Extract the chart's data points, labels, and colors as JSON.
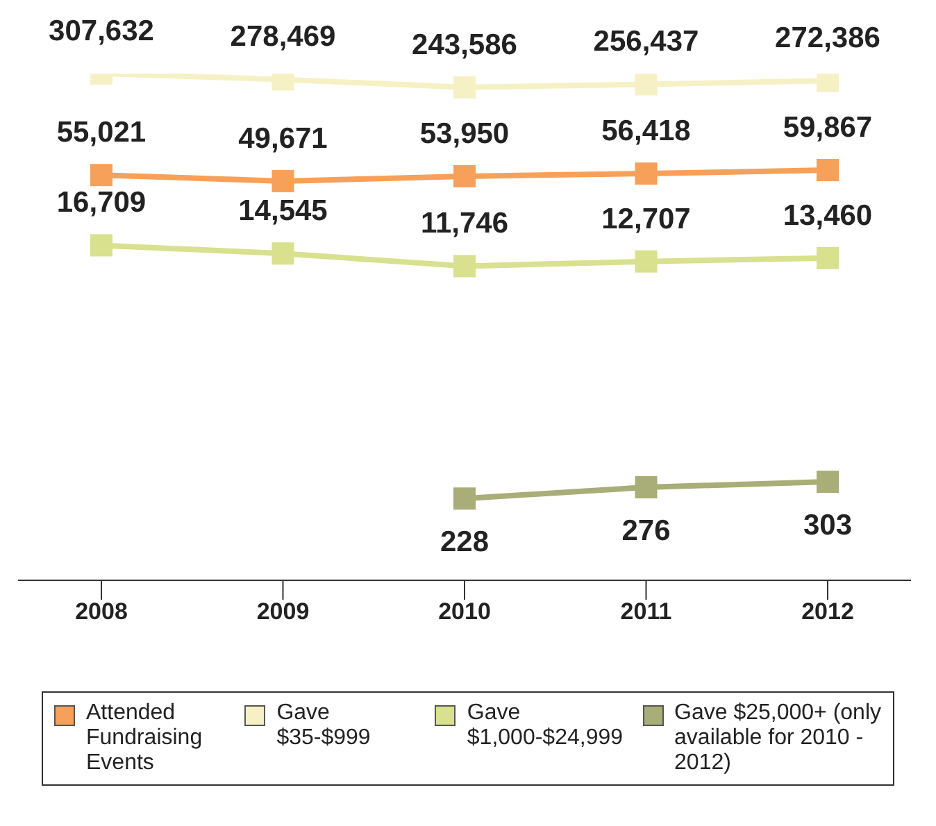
{
  "chart_data": {
    "type": "line",
    "categories": [
      "2008",
      "2009",
      "2010",
      "2011",
      "2012"
    ],
    "series": [
      {
        "name": "Attended Fundraising Events",
        "color": "#f7a05a",
        "values": [
          55021,
          49671,
          53950,
          56418,
          59867
        ],
        "value_labels": [
          "55,021",
          "49,671",
          "53,950",
          "56,418",
          "59,867"
        ]
      },
      {
        "name": "Gave $35-$999",
        "color": "#f6f1c4",
        "values": [
          307632,
          278469,
          243586,
          256437,
          272386
        ],
        "value_labels": [
          "307,632",
          "278,469",
          "243,586",
          "256,437",
          "272,386"
        ]
      },
      {
        "name": "Gave $1,000-$24,999",
        "color": "#d9e08e",
        "values": [
          16709,
          14545,
          11746,
          12707,
          13460
        ],
        "value_labels": [
          "16,709",
          "14,545",
          "11,746",
          "12,707",
          "13,460"
        ]
      },
      {
        "name": "Gave $25,000+ (only available for 2010 - 2012)",
        "color": "#a9ad77",
        "values": [
          null,
          null,
          228,
          276,
          303
        ],
        "value_labels": [
          null,
          null,
          "228",
          "276",
          "303"
        ]
      }
    ],
    "log": true,
    "tick_labels": "x",
    "marker": "square",
    "line_style": "solid",
    "legend": "bottom"
  }
}
